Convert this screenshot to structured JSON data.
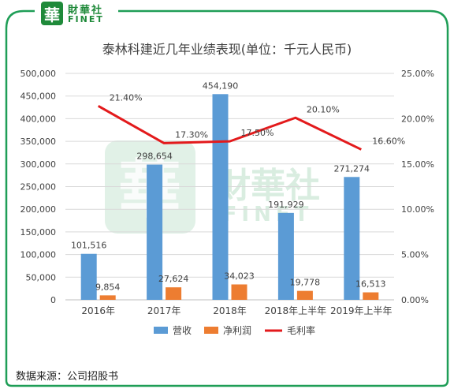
{
  "brand": {
    "logo_char": "華",
    "name_cn": "財華社",
    "name_en": "FINET"
  },
  "watermark": {
    "char": "華",
    "name_cn": "財華社",
    "name_en": "FINET"
  },
  "source_note": "数据来源：公司招股书",
  "colors": {
    "frame": "#1f9e57",
    "revenue": "#5b9bd5",
    "profit": "#ed7d31",
    "margin": "#e31a1c",
    "grid": "#d9d9d9",
    "watermark": "#c9e6d4"
  },
  "chart_data": {
    "type": "bar",
    "title": "泰林科建近几年业绩表现(单位：千元人民币)",
    "categories": [
      "2016年",
      "2017年",
      "2018年",
      "2018年上半年",
      "2019年上半年"
    ],
    "series": [
      {
        "name": "营收",
        "kind": "bar",
        "axis": "left",
        "values": [
          101516,
          298654,
          454190,
          191929,
          271274
        ],
        "labels": [
          "101,516",
          "298,654",
          "454,190",
          "191,929",
          "271,274"
        ]
      },
      {
        "name": "净利润",
        "kind": "bar",
        "axis": "left",
        "values": [
          9854,
          27624,
          34023,
          19778,
          16513
        ],
        "labels": [
          "9,854",
          "27,624",
          "34,023",
          "19,778",
          "16,513"
        ]
      },
      {
        "name": "毛利率",
        "kind": "line",
        "axis": "right",
        "values": [
          21.4,
          17.3,
          17.5,
          20.1,
          16.6
        ],
        "labels": [
          "21.40%",
          "17.30%",
          "17.50%",
          "20.10%",
          "16.60%"
        ]
      }
    ],
    "ylim_left": [
      0,
      500000
    ],
    "yticks_left": [
      "0",
      "50,000",
      "100,000",
      "150,000",
      "200,000",
      "250,000",
      "300,000",
      "350,000",
      "400,000",
      "450,000",
      "500,000"
    ],
    "ylim_right": [
      0,
      25
    ],
    "yticks_right": [
      "0.00%",
      "5.00%",
      "10.00%",
      "15.00%",
      "20.00%",
      "25.00%"
    ],
    "grid": true,
    "legend_position": "bottom"
  }
}
